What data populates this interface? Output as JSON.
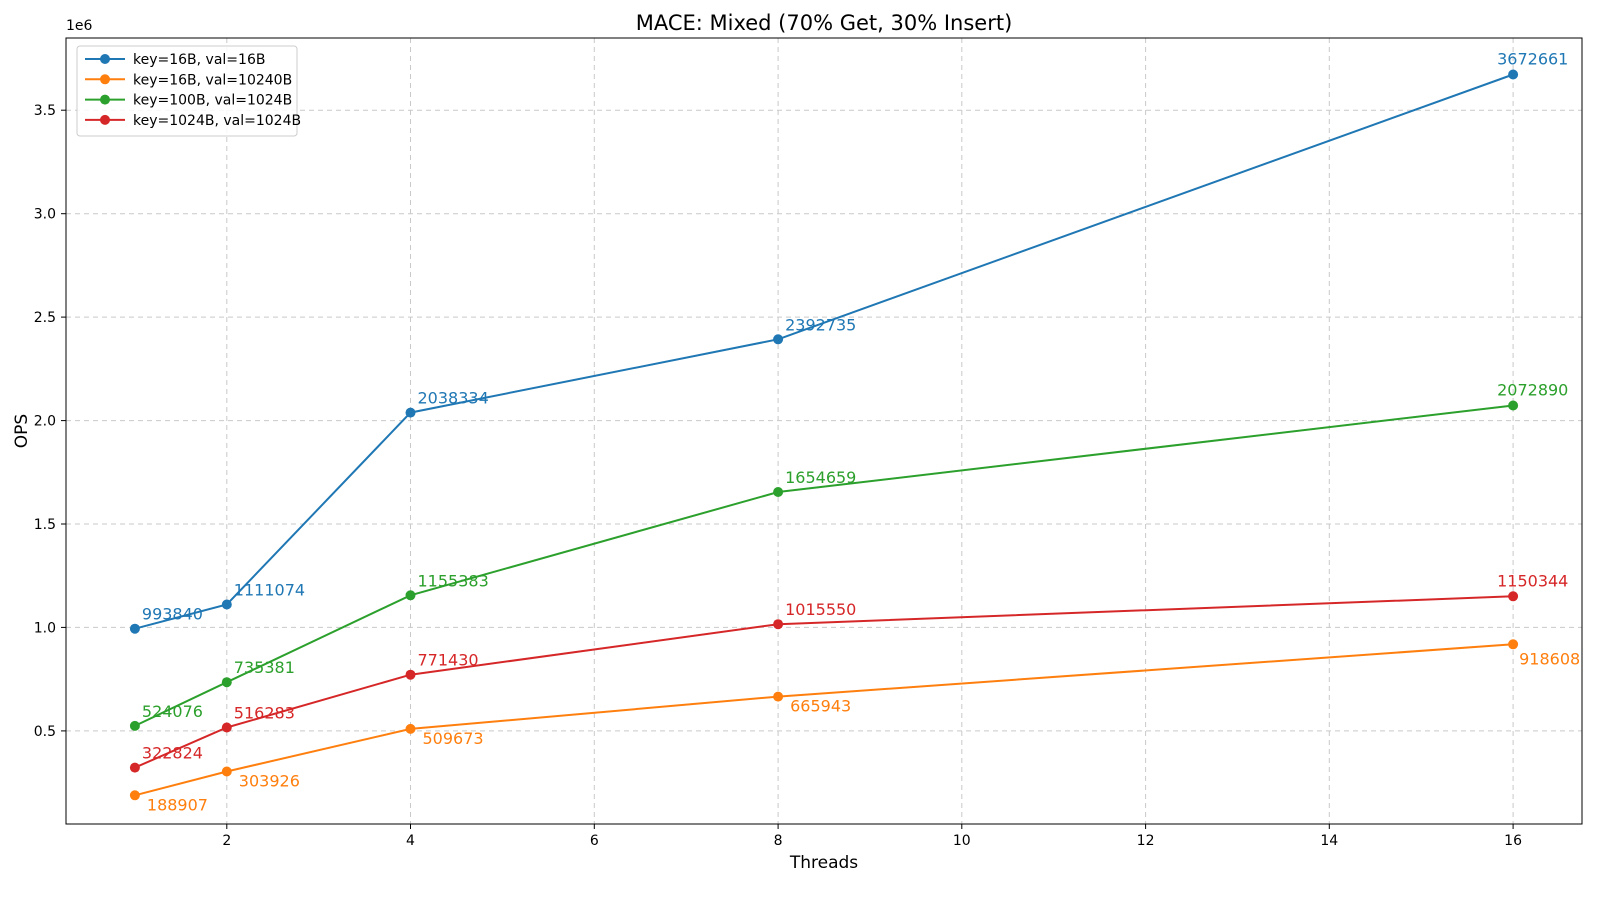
{
  "figure": {
    "background": "#ffffff"
  },
  "chart_data": {
    "type": "line",
    "title": "MACE: Mixed (70% Get, 30% Insert)",
    "xlabel": "Threads",
    "ylabel": "OPS",
    "y_scale_offset_text": "1e6",
    "x": [
      1,
      2,
      4,
      8,
      16
    ],
    "series": [
      {
        "name": "key=16B, val=16B",
        "color": "#1f77b4",
        "values": [
          993840,
          1111074,
          2038334,
          2392735,
          3672661
        ]
      },
      {
        "name": "key=16B, val=10240B",
        "color": "#ff7f0e",
        "values": [
          188907,
          303926,
          509673,
          665943,
          918608
        ]
      },
      {
        "name": "key=100B, val=1024B",
        "color": "#2ca02c",
        "values": [
          524076,
          735381,
          1155383,
          1654659,
          2072890
        ]
      },
      {
        "name": "key=1024B, val=1024B",
        "color": "#d62728",
        "values": [
          322824,
          516283,
          771430,
          1015550,
          1150344
        ]
      }
    ],
    "x_ticks": [
      2,
      4,
      6,
      8,
      10,
      12,
      14,
      16
    ],
    "x_tick_labels": [
      "2",
      "4",
      "6",
      "8",
      "10",
      "12",
      "14",
      "16"
    ],
    "y_ticks": [
      500000,
      1000000,
      1500000,
      2000000,
      2500000,
      3000000,
      3500000
    ],
    "y_tick_labels": [
      "0.5",
      "1.0",
      "1.5",
      "2.0",
      "2.5",
      "3.0",
      "3.5"
    ],
    "xlim": [
      0.25,
      16.75
    ],
    "ylim": [
      50000,
      3849000
    ],
    "grid": true,
    "grid_style": "dashed",
    "legend_position": "upper left",
    "point_labels": true
  }
}
